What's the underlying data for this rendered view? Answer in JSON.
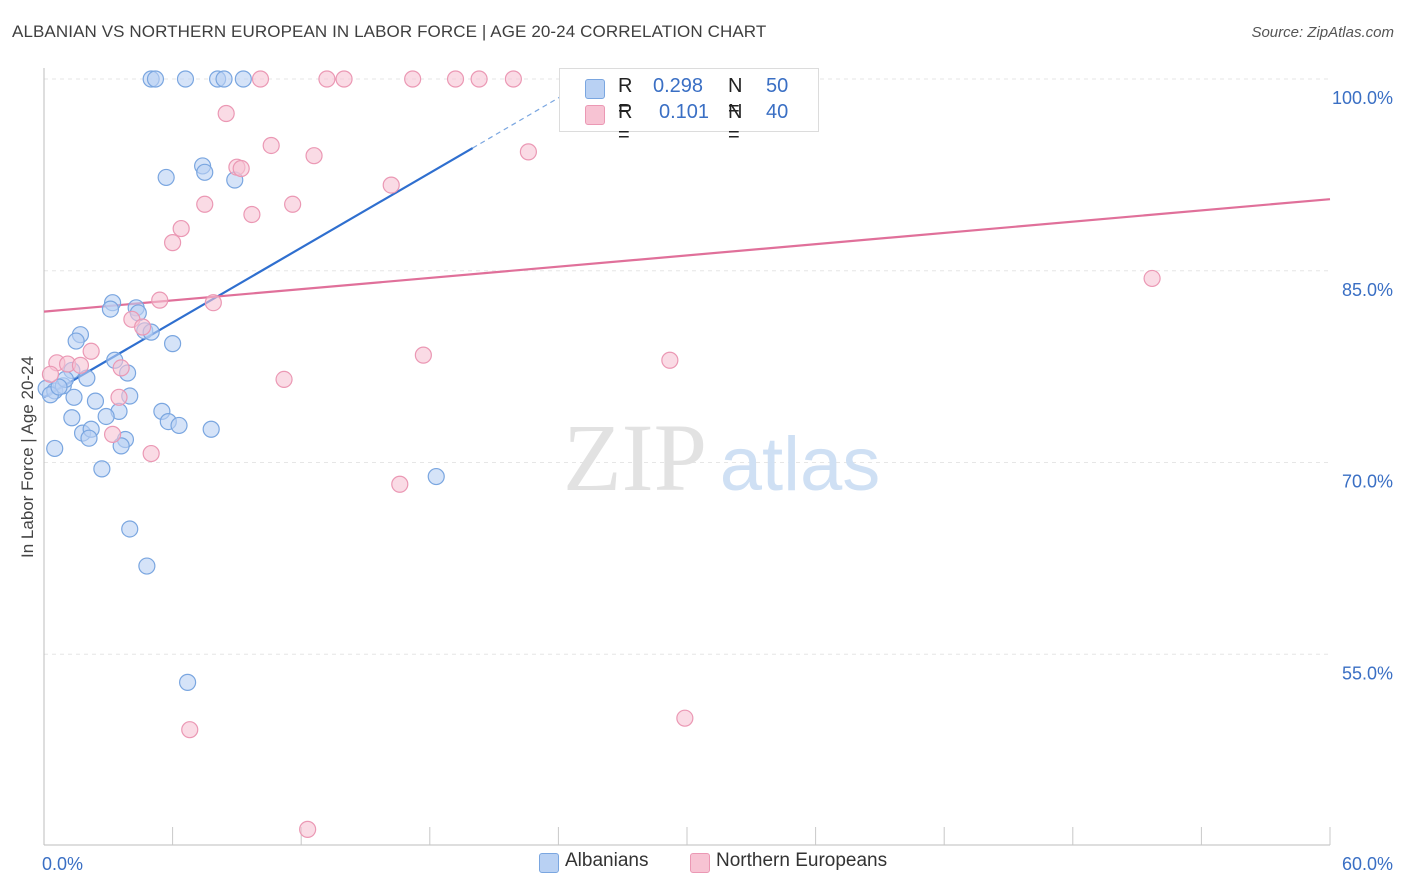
{
  "title": "ALBANIAN VS NORTHERN EUROPEAN IN LABOR FORCE | AGE 20-24 CORRELATION CHART",
  "source": "Source: ZipAtlas.com",
  "watermark": {
    "zip": "ZIP",
    "atlas": "atlas"
  },
  "stats": [
    {
      "r_label": "R =",
      "r_value": "0.298",
      "n_label": "N =",
      "n_value": "50"
    },
    {
      "r_label": "R =",
      "r_value": "0.101",
      "n_label": "N =",
      "n_value": "40"
    }
  ],
  "legend": {
    "albanians": "Albanians",
    "northern_europeans": "Northern Europeans"
  },
  "colors": {
    "blue_fill": "#b9d1f3",
    "blue_stroke": "#7aa6e0",
    "blue_line": "#2f6fcf",
    "pink_fill": "#f7c3d3",
    "pink_stroke": "#eb98b4",
    "pink_line": "#e0709a",
    "axis_label": "#3a6fc4",
    "grid": "#e6e6e6"
  },
  "chart_data": {
    "type": "scatter",
    "title": "ALBANIAN VS NORTHERN EUROPEAN IN LABOR FORCE | AGE 20-24 CORRELATION CHART",
    "xlabel": "",
    "ylabel": "In Labor Force | Age 20-24",
    "xlim": [
      0,
      60
    ],
    "ylim": [
      40,
      101
    ],
    "x_tick_labels": [
      "0.0%",
      "60.0%"
    ],
    "y_ticks": [
      55,
      70,
      85,
      100
    ],
    "y_tick_labels": [
      "55.0%",
      "70.0%",
      "85.0%",
      "100.0%"
    ],
    "series": [
      {
        "name": "Albanians",
        "r": 0.298,
        "n": 50,
        "trend": {
          "x0": 0,
          "y0": 75.1,
          "x1": 20,
          "y1": 94.6,
          "dash_to_x": 25,
          "dash_to_y": 99.5
        },
        "points": [
          [
            5.0,
            100
          ],
          [
            5.2,
            100
          ],
          [
            6.6,
            100
          ],
          [
            8.1,
            100
          ],
          [
            8.4,
            100
          ],
          [
            9.3,
            100
          ],
          [
            5.7,
            92.3
          ],
          [
            7.4,
            93.2
          ],
          [
            7.5,
            92.7
          ],
          [
            8.9,
            92.1
          ],
          [
            3.2,
            82.5
          ],
          [
            3.1,
            82.0
          ],
          [
            4.3,
            82.1
          ],
          [
            4.4,
            81.7
          ],
          [
            4.7,
            80.3
          ],
          [
            5.0,
            80.2
          ],
          [
            6.0,
            79.3
          ],
          [
            1.7,
            80.0
          ],
          [
            1.5,
            79.5
          ],
          [
            3.3,
            78.0
          ],
          [
            1.3,
            77.2
          ],
          [
            3.9,
            77.0
          ],
          [
            2.0,
            76.6
          ],
          [
            0.1,
            75.8
          ],
          [
            0.5,
            75.6
          ],
          [
            0.9,
            76.0
          ],
          [
            1.0,
            76.5
          ],
          [
            0.3,
            75.3
          ],
          [
            0.7,
            75.9
          ],
          [
            1.4,
            75.1
          ],
          [
            2.4,
            74.8
          ],
          [
            4.0,
            75.2
          ],
          [
            3.5,
            74.0
          ],
          [
            2.9,
            73.6
          ],
          [
            1.3,
            73.5
          ],
          [
            5.5,
            74.0
          ],
          [
            5.8,
            73.2
          ],
          [
            6.3,
            72.9
          ],
          [
            7.8,
            72.6
          ],
          [
            1.8,
            72.3
          ],
          [
            2.2,
            72.6
          ],
          [
            2.1,
            71.9
          ],
          [
            3.8,
            71.8
          ],
          [
            3.6,
            71.3
          ],
          [
            0.5,
            71.1
          ],
          [
            2.7,
            69.5
          ],
          [
            18.3,
            68.9
          ],
          [
            4.0,
            64.8
          ],
          [
            4.8,
            61.9
          ],
          [
            6.7,
            52.8
          ]
        ]
      },
      {
        "name": "Northern Europeans",
        "r": 0.101,
        "n": 40,
        "trend": {
          "x0": 0,
          "y0": 81.8,
          "x1": 60,
          "y1": 90.6
        },
        "points": [
          [
            10.1,
            100
          ],
          [
            13.2,
            100
          ],
          [
            14.0,
            100
          ],
          [
            17.2,
            100
          ],
          [
            19.2,
            100
          ],
          [
            20.3,
            100
          ],
          [
            21.9,
            100
          ],
          [
            8.5,
            97.3
          ],
          [
            10.6,
            94.8
          ],
          [
            12.6,
            94.0
          ],
          [
            22.6,
            94.3
          ],
          [
            9.0,
            93.1
          ],
          [
            9.2,
            93.0
          ],
          [
            16.2,
            91.7
          ],
          [
            7.5,
            90.2
          ],
          [
            11.6,
            90.2
          ],
          [
            9.7,
            89.4
          ],
          [
            6.4,
            88.3
          ],
          [
            6.0,
            87.2
          ],
          [
            51.7,
            84.4
          ],
          [
            5.4,
            82.7
          ],
          [
            7.9,
            82.5
          ],
          [
            4.1,
            81.2
          ],
          [
            4.6,
            80.6
          ],
          [
            2.2,
            78.7
          ],
          [
            17.7,
            78.4
          ],
          [
            29.2,
            78.0
          ],
          [
            0.6,
            77.8
          ],
          [
            1.1,
            77.7
          ],
          [
            1.7,
            77.6
          ],
          [
            3.6,
            77.4
          ],
          [
            0.3,
            76.9
          ],
          [
            11.2,
            76.5
          ],
          [
            3.5,
            75.1
          ],
          [
            3.2,
            72.2
          ],
          [
            5.0,
            70.7
          ],
          [
            16.6,
            68.3
          ],
          [
            29.9,
            50.0
          ],
          [
            6.8,
            49.1
          ],
          [
            12.3,
            41.3
          ]
        ]
      }
    ]
  }
}
